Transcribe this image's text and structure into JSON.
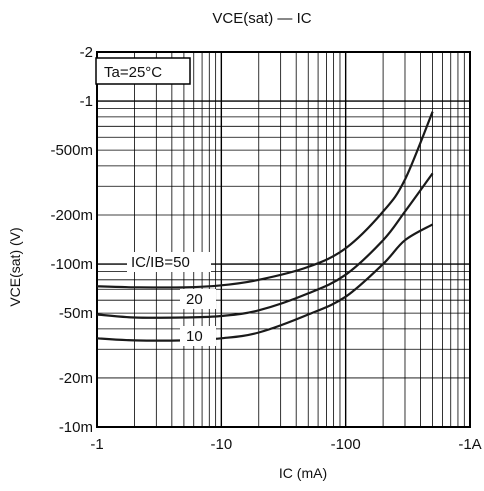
{
  "chart_data": {
    "type": "line",
    "title": "VCE(sat) — IC",
    "xlabel": "IC (mA)",
    "ylabel": "VCE(sat) (V)",
    "x_scale": "log",
    "y_scale": "log",
    "xlim": [
      -1,
      -1000
    ],
    "ylim": [
      -10,
      -2000
    ],
    "x_ticks": [
      {
        "value": -1,
        "label": "-1"
      },
      {
        "value": -10,
        "label": "-10"
      },
      {
        "value": -100,
        "label": "-100"
      },
      {
        "value": -1000,
        "label": "-1A"
      }
    ],
    "y_ticks": [
      {
        "value": -2000,
        "label": "-2"
      },
      {
        "value": -1000,
        "label": "-1"
      },
      {
        "value": -500,
        "label": "-500m"
      },
      {
        "value": -200,
        "label": "-200m"
      },
      {
        "value": -100,
        "label": "-100m"
      },
      {
        "value": -50,
        "label": "-50m"
      },
      {
        "value": -20,
        "label": "-20m"
      },
      {
        "value": -10,
        "label": "-10m"
      }
    ],
    "grid": true,
    "series": [
      {
        "name": "IC/IB=50",
        "x": [
          -1,
          -2,
          -5,
          -10,
          -20,
          -50,
          -100,
          -200,
          -300,
          -500
        ],
        "y": [
          -73,
          -72,
          -72,
          -74,
          -80,
          -96,
          -125,
          -210,
          -330,
          -860
        ]
      },
      {
        "name": "20",
        "x": [
          -1,
          -2,
          -5,
          -10,
          -20,
          -50,
          -100,
          -200,
          -300,
          -500
        ],
        "y": [
          -49,
          -47,
          -47,
          -48,
          -52,
          -66,
          -86,
          -140,
          -210,
          -360
        ]
      },
      {
        "name": "10",
        "x": [
          -1,
          -2,
          -5,
          -10,
          -20,
          -50,
          -100,
          -200,
          -300,
          -500
        ],
        "y": [
          -35,
          -34,
          -34,
          -35,
          -38,
          -49,
          -63,
          -100,
          -140,
          -175
        ]
      }
    ],
    "annotations": [
      "Ta=25°C",
      "IC/IB=50",
      "20",
      "10"
    ]
  },
  "colors": {
    "grid": "#000000",
    "curve": "#1a1a1a",
    "background": "#ffffff"
  }
}
